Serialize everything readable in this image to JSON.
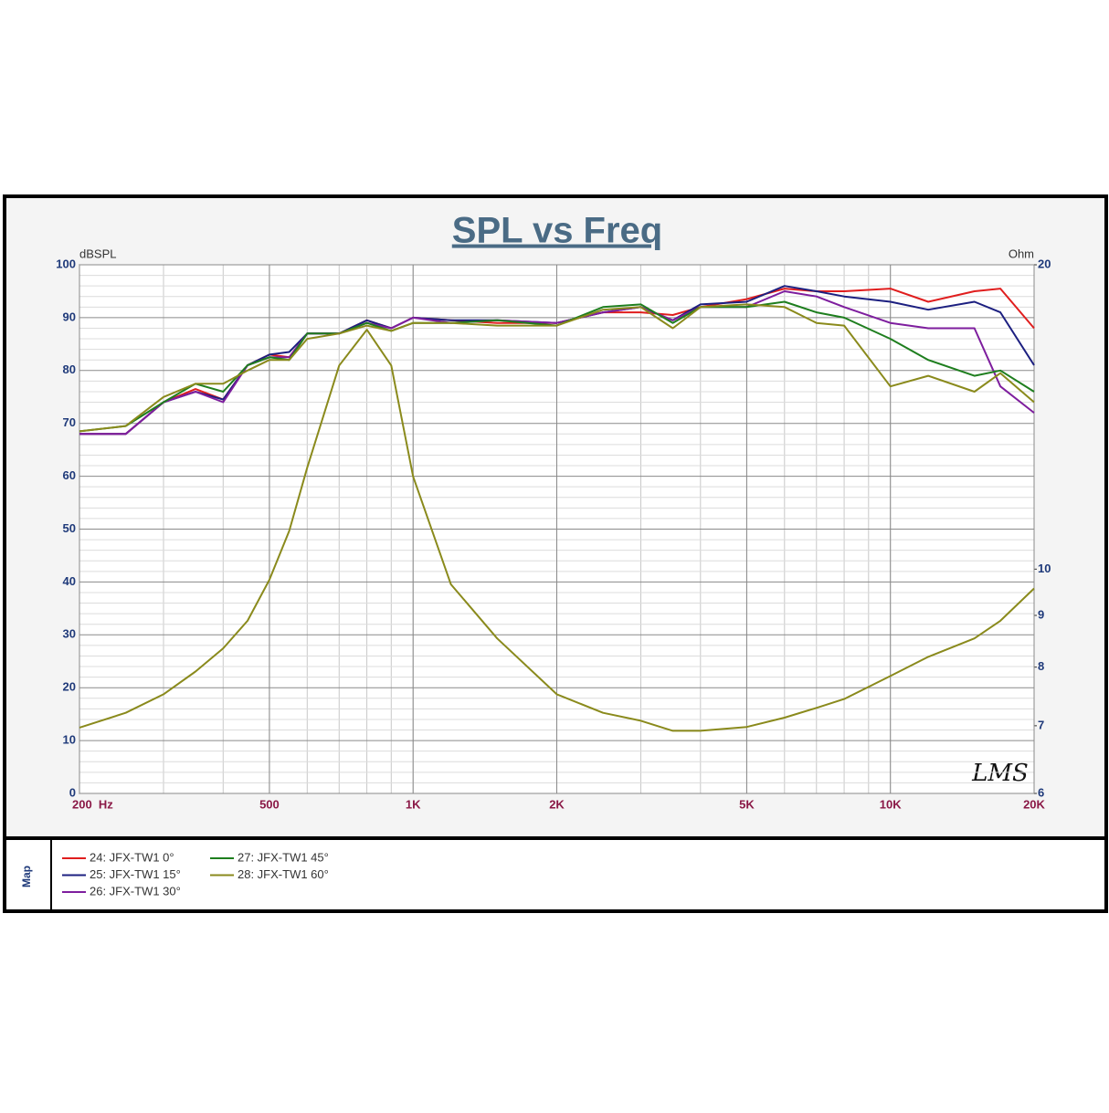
{
  "chart_data": {
    "type": "line",
    "title": "SPL vs Freq",
    "y_label": "dBSPL",
    "y2_label": "Ohm",
    "annotation": "LMS",
    "legend_title": "Map",
    "x_log": true,
    "y2_log": true,
    "grid": true,
    "xlim": [
      200,
      20000
    ],
    "ylim": [
      0,
      100
    ],
    "y2lim": [
      6,
      20
    ],
    "xticks": [
      {
        "value": 200,
        "label": "200  Hz"
      },
      500,
      {
        "value": 1000,
        "label": "1K"
      },
      {
        "value": 2000,
        "label": "2K"
      },
      {
        "value": 5000,
        "label": "5K"
      },
      {
        "value": 10000,
        "label": "10K"
      },
      {
        "value": 20000,
        "label": "20K"
      }
    ],
    "yticks": [
      0,
      10,
      20,
      30,
      40,
      50,
      60,
      70,
      80,
      90,
      100
    ],
    "y2ticks": [
      6,
      7,
      8,
      9,
      10,
      20
    ],
    "x": [
      200,
      250,
      300,
      350,
      400,
      450,
      500,
      550,
      600,
      700,
      800,
      900,
      1000,
      1200,
      1500,
      2000,
      2500,
      3000,
      3500,
      4000,
      5000,
      6000,
      7000,
      8000,
      10000,
      12000,
      15000,
      17000,
      20000
    ],
    "series": [
      {
        "name": "24: JFX-TW1  0°",
        "color": "#e01e1e",
        "values": [
          68,
          68,
          74,
          76.5,
          74.5,
          81,
          83,
          82.5,
          87,
          87,
          89.5,
          88,
          90,
          89.5,
          89,
          89,
          91,
          91,
          90.5,
          92,
          93.5,
          95.5,
          95,
          95,
          95.5,
          93,
          95,
          95.5,
          88
        ]
      },
      {
        "name": "25: JFX-TW1  15°",
        "color": "#1c1f80",
        "values": [
          68,
          68,
          74,
          76,
          74.5,
          81,
          83,
          83.5,
          87,
          87,
          89.5,
          88,
          90,
          89.5,
          89.5,
          89,
          91,
          92,
          89.5,
          92.5,
          93,
          96,
          95,
          94,
          93,
          91.5,
          93,
          91,
          81
        ]
      },
      {
        "name": "26: JFX-TW1  30°",
        "color": "#7e1e9e",
        "values": [
          68,
          68,
          74,
          76,
          74,
          81,
          82.5,
          82.5,
          87,
          87,
          89,
          88,
          90,
          89,
          89.5,
          89,
          91,
          92,
          89.5,
          92,
          92,
          95,
          94,
          92,
          89,
          88,
          88,
          77,
          72
        ]
      },
      {
        "name": "27: JFX-TW1  45°",
        "color": "#1e7e1e",
        "values": [
          68.5,
          69.5,
          74,
          77.5,
          76,
          81,
          82.5,
          82,
          87,
          87,
          89,
          87.5,
          89,
          89,
          89.5,
          88.5,
          92,
          92.5,
          89,
          92,
          92,
          93,
          91,
          90,
          86,
          82,
          79,
          80,
          76
        ]
      },
      {
        "name": "28: JFX-TW1  60°",
        "color": "#8a8a1c",
        "values": [
          68.5,
          69.5,
          75,
          77.5,
          77.5,
          80,
          82,
          82,
          86,
          87,
          88.5,
          87.5,
          89,
          89,
          88.5,
          88.5,
          91.5,
          92,
          88,
          92,
          92.5,
          92,
          89,
          88.5,
          77,
          79,
          76,
          79.5,
          74
        ]
      },
      {
        "color": "#8a8a1c",
        "axis": "y2",
        "values": [
          6.97,
          7.21,
          7.52,
          7.92,
          8.35,
          8.89,
          9.76,
          10.91,
          12.6,
          15.9,
          17.25,
          15.9,
          12.35,
          9.66,
          8.54,
          7.52,
          7.21,
          7.08,
          6.92,
          6.92,
          6.98,
          7.13,
          7.29,
          7.44,
          7.84,
          8.19,
          8.54,
          8.89,
          9.57
        ]
      }
    ]
  }
}
